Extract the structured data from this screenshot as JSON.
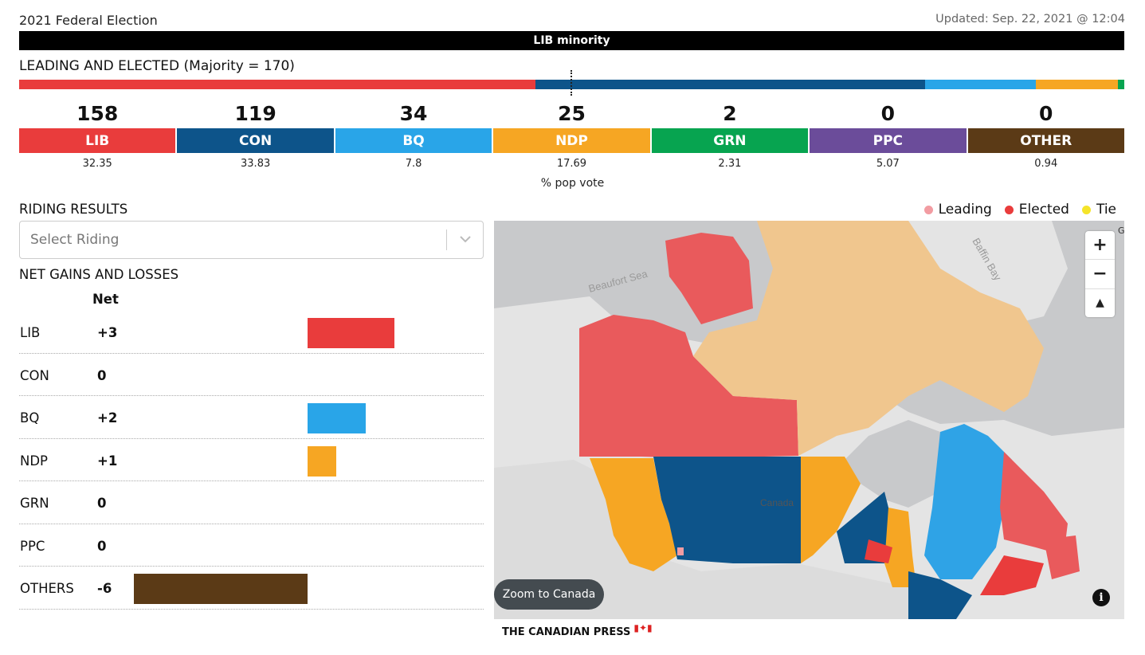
{
  "header": {
    "title": "2021 Federal Election",
    "updated": "Updated: Sep. 22, 2021 @ 12:04",
    "banner": "LIB minority",
    "leading_label": "LEADING AND ELECTED (Majority = 170)"
  },
  "seat_bar": [
    {
      "party": "LIB",
      "seats": 158,
      "color": "#e93c3c"
    },
    {
      "party": "CON",
      "seats": 119,
      "color": "#0d548a"
    },
    {
      "party": "BQ",
      "seats": 34,
      "color": "#29a5e8"
    },
    {
      "party": "NDP",
      "seats": 25,
      "color": "#f6a623"
    },
    {
      "party": "GRN",
      "seats": 2,
      "color": "#07a450"
    }
  ],
  "parties": [
    {
      "name": "LIB",
      "seats": "158",
      "pct": "32.35",
      "color": "#e93c3c"
    },
    {
      "name": "CON",
      "seats": "119",
      "pct": "33.83",
      "color": "#0d548a"
    },
    {
      "name": "BQ",
      "seats": "34",
      "pct": "7.8",
      "color": "#29a5e8"
    },
    {
      "name": "NDP",
      "seats": "25",
      "pct": "17.69",
      "color": "#f6a623"
    },
    {
      "name": "GRN",
      "seats": "2",
      "pct": "2.31",
      "color": "#07a450"
    },
    {
      "name": "PPC",
      "seats": "0",
      "pct": "5.07",
      "color": "#6b4c9a"
    },
    {
      "name": "OTHER",
      "seats": "0",
      "pct": "0.94",
      "color": "#5b3a16"
    }
  ],
  "pop_vote_label": "% pop vote",
  "riding": {
    "label": "RIDING RESULTS",
    "placeholder": "Select Riding"
  },
  "net": {
    "label": "NET GAINS AND LOSSES",
    "header": "Net",
    "rows": [
      {
        "party": "LIB",
        "value": "+3",
        "num": 3,
        "color": "#e93c3c"
      },
      {
        "party": "CON",
        "value": "0",
        "num": 0,
        "color": "#0d548a"
      },
      {
        "party": "BQ",
        "value": "+2",
        "num": 2,
        "color": "#29a5e8"
      },
      {
        "party": "NDP",
        "value": "+1",
        "num": 1,
        "color": "#f6a623"
      },
      {
        "party": "GRN",
        "value": "0",
        "num": 0,
        "color": "#07a450"
      },
      {
        "party": "PPC",
        "value": "0",
        "num": 0,
        "color": "#6b4c9a"
      },
      {
        "party": "OTHERS",
        "value": "-6",
        "num": -6,
        "color": "#5b3a16"
      }
    ]
  },
  "legend": [
    {
      "label": "Leading",
      "color": "#f29ca2"
    },
    {
      "label": "Elected",
      "color": "#e93c3c"
    },
    {
      "label": "Tie",
      "color": "#f5e42a"
    }
  ],
  "map": {
    "zoom_button": "Zoom to Canada",
    "country_label": "Canada",
    "sea_labels": [
      "Beaufort Sea",
      "Baffin Bay"
    ],
    "controls": {
      "zoom_in": "+",
      "zoom_out": "−",
      "compass": "▲"
    },
    "info": "i",
    "corner": "G"
  },
  "footer": {
    "press": "THE CANADIAN PRESS",
    "logo_icon": "maple-leaf-icon"
  }
}
